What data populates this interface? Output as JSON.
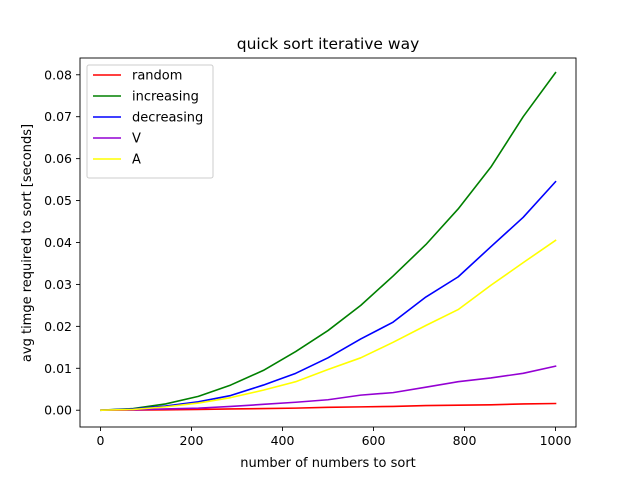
{
  "chart_data": {
    "type": "line",
    "title": "quick sort iterative way",
    "xlabel": "number of numbers to sort",
    "ylabel": "avg timge required to sort  [seconds]",
    "xlim": [
      -45,
      1045
    ],
    "ylim": [
      -0.004,
      0.084
    ],
    "xticks": [
      0,
      200,
      400,
      600,
      800,
      1000
    ],
    "xtick_labels": [
      "0",
      "200",
      "400",
      "600",
      "800",
      "1000"
    ],
    "yticks": [
      0.0,
      0.01,
      0.02,
      0.03,
      0.04,
      0.05,
      0.06,
      0.07,
      0.08
    ],
    "ytick_labels": [
      "0.00",
      "0.01",
      "0.02",
      "0.03",
      "0.04",
      "0.05",
      "0.06",
      "0.07",
      "0.08"
    ],
    "grid": false,
    "legend_position": "upper-left",
    "x": [
      1,
      72,
      143,
      215,
      286,
      358,
      429,
      500,
      572,
      643,
      715,
      786,
      858,
      929,
      1000
    ],
    "series": [
      {
        "name": "random",
        "color": "#ff0000",
        "values": [
          0.0,
          5e-05,
          0.0001,
          0.0002,
          0.0003,
          0.0004,
          0.0005,
          0.0007,
          0.0008,
          0.0009,
          0.0011,
          0.0012,
          0.0013,
          0.0015,
          0.0016
        ]
      },
      {
        "name": "increasing",
        "color": "#008000",
        "values": [
          0.0,
          0.0004,
          0.0015,
          0.0033,
          0.006,
          0.0095,
          0.014,
          0.019,
          0.025,
          0.032,
          0.0395,
          0.048,
          0.058,
          0.07,
          0.0805
        ]
      },
      {
        "name": "decreasing",
        "color": "#0000ff",
        "values": [
          0.0,
          0.0003,
          0.001,
          0.002,
          0.0035,
          0.006,
          0.0088,
          0.0125,
          0.017,
          0.021,
          0.027,
          0.0318,
          0.039,
          0.046,
          0.0545
        ]
      },
      {
        "name": "V",
        "color": "#9400d3",
        "values": [
          0.0,
          0.0001,
          0.0003,
          0.0005,
          0.0009,
          0.0014,
          0.0019,
          0.0025,
          0.0036,
          0.0042,
          0.0055,
          0.0068,
          0.0077,
          0.0088,
          0.0105
        ]
      },
      {
        "name": "A",
        "color": "#ffff00",
        "values": [
          0.0,
          0.0002,
          0.0008,
          0.0017,
          0.003,
          0.0048,
          0.0068,
          0.0097,
          0.0125,
          0.0162,
          0.0202,
          0.024,
          0.0298,
          0.0352,
          0.0405
        ]
      }
    ]
  }
}
